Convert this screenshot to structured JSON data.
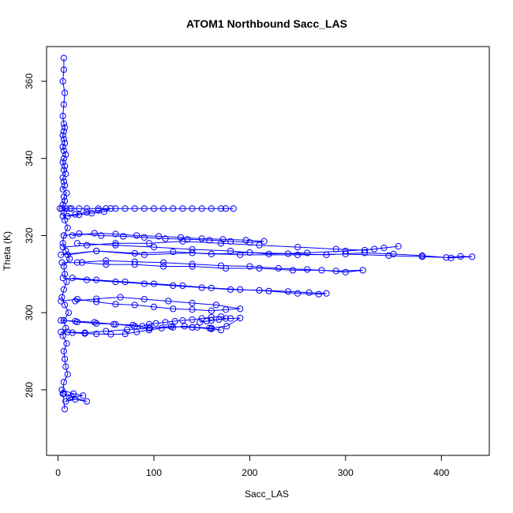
{
  "chart_data": {
    "type": "scatter",
    "title": "ATOM1 Northbound Sacc_LAS",
    "xlabel": "Sacc_LAS",
    "ylabel": "Theta (K)",
    "xlim": [
      -12,
      450
    ],
    "ylim": [
      263,
      369
    ],
    "xticks": [
      0,
      100,
      200,
      300,
      400
    ],
    "yticks": [
      280,
      300,
      320,
      340,
      360
    ],
    "grid": false,
    "legend": "none",
    "color": "#0000ff",
    "marker": "open-circle",
    "connected": true,
    "series": [
      {
        "x": [
          6,
          6,
          5,
          7,
          6,
          5,
          6,
          7,
          6,
          5,
          6,
          7,
          5,
          6,
          8,
          6,
          5,
          7,
          6,
          8,
          5,
          6,
          7,
          5,
          9,
          6,
          7,
          5,
          8,
          6,
          7,
          10,
          6,
          5,
          8,
          12,
          6,
          7,
          9,
          6,
          4,
          7,
          11,
          6,
          8,
          5,
          9,
          6,
          7,
          8,
          10,
          6,
          5,
          7
        ],
        "y": [
          366,
          363,
          360,
          357,
          354,
          351,
          349,
          348,
          347,
          346,
          345,
          344,
          343,
          342,
          341,
          340,
          339,
          338,
          337,
          336,
          335,
          334,
          333,
          332,
          331,
          330,
          329,
          328,
          327,
          326,
          324,
          322,
          320,
          318,
          316,
          314,
          312,
          310,
          308,
          306,
          304,
          302,
          300,
          298,
          296,
          294,
          292,
          290,
          288,
          286,
          284,
          282,
          279,
          275
        ]
      },
      {
        "x": [
          2,
          12,
          22,
          42,
          60,
          80,
          100,
          120,
          140,
          160,
          175,
          183,
          170,
          150,
          130,
          110,
          90,
          70,
          50,
          30,
          14,
          4
        ],
        "y": [
          327,
          327,
          327,
          327,
          327,
          327,
          327,
          327,
          327,
          327,
          327,
          327,
          327,
          327,
          327,
          327,
          327,
          327,
          327,
          327,
          327,
          327
        ]
      },
      {
        "x": [
          3,
          40,
          90,
          140,
          190,
          250,
          300,
          345,
          380,
          405,
          420,
          432,
          410,
          380,
          350,
          320,
          280,
          240,
          200,
          160,
          120,
          80,
          40,
          10
        ],
        "y": [
          315,
          316,
          315,
          315.5,
          315,
          315,
          315.2,
          314.8,
          314.5,
          314.3,
          314.6,
          314.5,
          314.2,
          314.8,
          315.2,
          315.5,
          315,
          315.3,
          315.6,
          315.2,
          315.8,
          315.4,
          316,
          315
        ]
      },
      {
        "x": [
          5,
          30,
          60,
          95,
          130,
          170,
          210,
          250,
          290,
          320,
          340,
          355,
          330,
          300,
          260,
          220,
          180,
          140,
          100,
          60,
          20
        ],
        "y": [
          317,
          317.5,
          318,
          318,
          318.5,
          318,
          317.5,
          317,
          316.5,
          316.2,
          316.8,
          317.2,
          316.5,
          316,
          315.5,
          315.2,
          316,
          316.4,
          317,
          317.5,
          318
        ]
      },
      {
        "x": [
          4,
          25,
          50,
          80,
          110,
          140,
          175,
          210,
          245,
          275,
          300,
          318,
          290,
          260,
          230,
          200,
          170,
          140,
          110,
          80,
          50,
          20
        ],
        "y": [
          313,
          313,
          312.5,
          312.5,
          312,
          312,
          311.5,
          311.5,
          311,
          311,
          310.5,
          311,
          310.8,
          311.2,
          311.5,
          312,
          312.2,
          312.6,
          313,
          313.2,
          313.5,
          313
        ]
      },
      {
        "x": [
          5,
          30,
          60,
          90,
          120,
          150,
          180,
          210,
          240,
          262,
          280,
          272,
          250,
          220,
          190,
          160,
          130,
          100,
          70,
          40,
          15
        ],
        "y": [
          309,
          308.5,
          308,
          307.5,
          307,
          306.5,
          306,
          305.8,
          305.5,
          305.2,
          305,
          304.8,
          305,
          305.6,
          306,
          306.4,
          307,
          307.5,
          308,
          308.5,
          309
        ]
      },
      {
        "x": [
          3,
          20,
          40,
          60,
          80,
          100,
          120,
          140,
          160,
          175,
          190,
          165,
          140,
          115,
          90,
          65,
          40,
          18
        ],
        "y": [
          303,
          303.5,
          302.8,
          302.2,
          302,
          301.5,
          301,
          300.8,
          300.5,
          300.8,
          301,
          302,
          302.5,
          303,
          303.5,
          304,
          303.6,
          303
        ]
      },
      {
        "x": [
          3,
          18,
          38,
          58,
          78,
          88,
          95,
          102,
          112,
          122,
          130,
          140,
          150,
          160,
          170,
          175,
          160,
          148,
          155,
          168,
          180,
          190,
          176,
          160,
          140,
          118,
          96,
          80,
          60,
          40,
          20,
          6
        ],
        "y": [
          298,
          297.8,
          297.5,
          297,
          296.8,
          296.5,
          297,
          297.2,
          297.5,
          297.8,
          298,
          298.2,
          298.5,
          298.8,
          299,
          298.5,
          298,
          297.5,
          297.8,
          298.2,
          298.5,
          298.6,
          296.5,
          296,
          296.2,
          296.4,
          296,
          296.5,
          297,
          297.2,
          297.6,
          298
        ]
      },
      {
        "x": [
          3,
          15,
          28,
          40,
          55,
          70,
          82,
          95,
          108,
          120,
          132,
          145,
          158,
          170,
          160,
          140,
          118,
          95,
          72,
          50,
          28,
          10
        ],
        "y": [
          295,
          294.8,
          294.6,
          294.5,
          294.4,
          294.5,
          295,
          295.5,
          296,
          296.2,
          296.5,
          296.2,
          296,
          295.5,
          295.8,
          296.2,
          296.4,
          296,
          295.6,
          295.2,
          294.8,
          295
        ]
      },
      {
        "x": [
          4,
          16,
          26,
          12,
          8,
          18,
          30,
          14,
          6
        ],
        "y": [
          280,
          279,
          278.5,
          278,
          277,
          277.5,
          277,
          278.2,
          279
        ]
      },
      {
        "x": [
          6,
          22,
          45,
          68,
          90,
          112,
          135,
          158,
          180,
          200,
          215,
          196,
          172,
          150,
          128,
          105,
          82,
          60,
          38,
          15
        ],
        "y": [
          320,
          320.5,
          320,
          319.8,
          319.5,
          319.2,
          319,
          318.8,
          318.5,
          318.2,
          318.5,
          318.8,
          319,
          319.2,
          319.5,
          319.8,
          320,
          320.4,
          320.6,
          320
        ]
      },
      {
        "x": [
          5,
          18,
          30,
          42,
          55,
          48,
          35,
          22,
          10
        ],
        "y": [
          325,
          325.5,
          326,
          326.5,
          327,
          326.2,
          325.8,
          325.4,
          325
        ]
      }
    ]
  }
}
